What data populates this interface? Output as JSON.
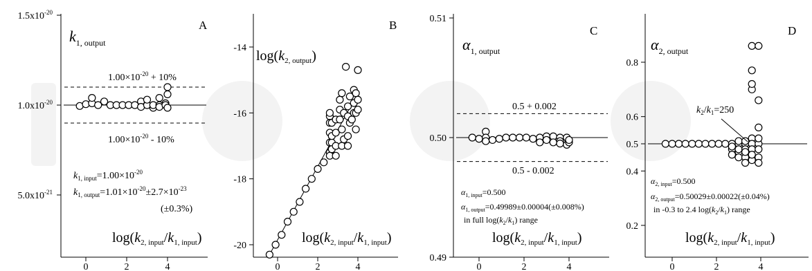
{
  "chart_data": [
    {
      "type": "scatter",
      "panel": "A",
      "ylabel": "k1, output",
      "xlabel": "log(k2, input/k1, input)",
      "xlim": [
        -0.6,
        4.6
      ],
      "ylim": [
        4.2e-21,
        1.5e-20
      ],
      "x_ticks": [
        {
          "label": "0"
        },
        {
          "label": "2"
        },
        {
          "label": "4"
        }
      ],
      "y_ticks": [
        {
          "label": "5.0x10-21"
        },
        {
          "label": "1.0x10-20"
        },
        {
          "label": "1.5x10-20"
        }
      ],
      "x": [
        -0.3,
        0.0,
        0.3,
        0.3,
        0.6,
        0.9,
        1.2,
        1.5,
        1.8,
        2.1,
        2.4,
        2.7,
        2.7,
        3.0,
        3.0,
        3.3,
        3.3,
        3.6,
        3.6,
        3.6,
        3.9,
        3.9,
        4.0,
        4.0,
        4.0
      ],
      "y": [
        9.95e-21,
        1.005e-20,
        1.01e-20,
        1.04e-20,
        1e-20,
        1.02e-20,
        1e-20,
        1e-20,
        1e-20,
        1e-20,
        1e-20,
        1.02e-20,
        9.9e-21,
        1e-20,
        1.03e-20,
        9.85e-21,
        1e-20,
        1e-20,
        1.04e-20,
        9.9e-21,
        1.01e-20,
        1e-20,
        1.06e-20,
        1.1e-20,
        9.85e-21
      ],
      "fit_lines": [
        {
          "y": 1e-20,
          "style": "solid"
        },
        {
          "y": 1.1e-20,
          "style": "dashed",
          "label": "1.00×10-20 + 10%"
        },
        {
          "y": 9e-21,
          "style": "dashed",
          "label": "1.00×10-20 - 10%"
        }
      ],
      "annotations": [
        "k1, input=1.00×10-20",
        "k1, output=1.01×10-20±2.7×10-23",
        "(±0.3%)"
      ]
    },
    {
      "type": "scatter",
      "panel": "B",
      "ylabel": "log(k2, output)",
      "xlabel": "log(k2, input/k1, input)",
      "xlim": [
        -0.6,
        4.6
      ],
      "ylim": [
        -20.6,
        -13.2
      ],
      "x_ticks": [
        {
          "label": "0"
        },
        {
          "label": "2"
        },
        {
          "label": "4"
        }
      ],
      "y_ticks": [
        {
          "label": "-20"
        },
        {
          "label": "-18"
        },
        {
          "label": "-16"
        },
        {
          "label": "-14"
        }
      ],
      "x": [
        -0.4,
        -0.1,
        0.2,
        0.5,
        0.8,
        1.1,
        1.4,
        1.7,
        2.0,
        2.3,
        2.6,
        2.6,
        2.6,
        2.6,
        2.6,
        2.6,
        2.6,
        2.7,
        2.7,
        2.7,
        2.7,
        2.9,
        2.9,
        2.9,
        2.9,
        3.1,
        3.1,
        3.1,
        3.2,
        3.2,
        3.2,
        3.3,
        3.3,
        3.4,
        3.5,
        3.5,
        3.5,
        3.5,
        3.6,
        3.6,
        3.7,
        3.8,
        3.8,
        3.8,
        3.9,
        3.9,
        3.9,
        4.0,
        4.0,
        4.0
      ],
      "y": [
        -20.3,
        -20.0,
        -19.7,
        -19.3,
        -19.0,
        -18.7,
        -18.3,
        -18.0,
        -17.7,
        -17.5,
        -16.1,
        -16.3,
        -16.9,
        -17.2,
        -17.3,
        -16.6,
        -16.0,
        -16.9,
        -17.1,
        -16.7,
        -16.3,
        -17.0,
        -16.6,
        -16.2,
        -17.3,
        -15.6,
        -15.9,
        -16.2,
        -17.0,
        -16.5,
        -15.4,
        -16.0,
        -16.8,
        -14.6,
        -15.8,
        -16.1,
        -16.7,
        -17.0,
        -16.3,
        -15.5,
        -16.2,
        -15.3,
        -15.7,
        -16.0,
        -16.5,
        -16.0,
        -15.4,
        -14.7,
        -15.6,
        -15.9
      ],
      "fit_lines": [
        {
          "x": [
            -0.4,
            4.0
          ],
          "y": [
            -20.3,
            -15.4
          ],
          "style": "solid"
        }
      ]
    },
    {
      "type": "scatter",
      "panel": "C",
      "ylabel": "α1, output",
      "xlabel": "log(k2, input/k1, input)",
      "xlim": [
        -0.6,
        4.6
      ],
      "ylim": [
        0.49,
        0.51
      ],
      "x_ticks": [
        {
          "label": "0"
        },
        {
          "label": "2"
        },
        {
          "label": "4"
        }
      ],
      "y_ticks": [
        {
          "label": "0.49"
        },
        {
          "label": "0.50"
        },
        {
          "label": "0.51"
        }
      ],
      "x": [
        -0.3,
        0.0,
        0.3,
        0.3,
        0.3,
        0.6,
        0.9,
        1.2,
        1.5,
        1.8,
        2.1,
        2.4,
        2.7,
        2.7,
        3.0,
        3.0,
        3.3,
        3.3,
        3.6,
        3.6,
        3.6,
        3.9,
        3.9,
        4.0,
        4.0
      ],
      "y": [
        0.5,
        0.4999,
        0.5005,
        0.5,
        0.4997,
        0.4998,
        0.4999,
        0.5,
        0.5,
        0.5,
        0.5,
        0.4999,
        0.5,
        0.4996,
        0.5001,
        0.4998,
        0.5001,
        0.4996,
        0.5,
        0.4997,
        0.4995,
        0.5,
        0.4994,
        0.4996,
        0.4998
      ],
      "fit_lines": [
        {
          "y": 0.5,
          "style": "solid"
        },
        {
          "y": 0.502,
          "style": "dashed",
          "label": "0.5 + 0.002"
        },
        {
          "y": 0.498,
          "style": "dashed",
          "label": "0.5 - 0.002"
        }
      ],
      "annotations": [
        "α1, input=0.500",
        "α1, output=0.49989±0.00004(±0.008%)",
        "in full log(k2/k1) range"
      ]
    },
    {
      "type": "scatter",
      "panel": "D",
      "ylabel": "α2, output",
      "xlabel": "log(k2, input/k1, input)",
      "xlim": [
        -0.6,
        4.6
      ],
      "ylim": [
        0.12,
        0.92
      ],
      "x_ticks": [
        {
          "label": "0"
        },
        {
          "label": "2"
        },
        {
          "label": "4"
        }
      ],
      "y_ticks": [
        {
          "label": "0.2"
        },
        {
          "label": "0.4"
        },
        {
          "label": "0.5"
        },
        {
          "label": "0.6"
        },
        {
          "label": "0.8"
        }
      ],
      "x": [
        -0.3,
        0.0,
        0.3,
        0.6,
        0.9,
        1.2,
        1.5,
        1.8,
        2.1,
        2.4,
        2.7,
        2.7,
        2.7,
        2.7,
        3.0,
        3.0,
        3.0,
        3.0,
        3.0,
        3.3,
        3.3,
        3.3,
        3.3,
        3.3,
        3.3,
        3.6,
        3.6,
        3.6,
        3.6,
        3.6,
        3.6,
        3.6,
        3.6,
        3.6,
        3.9,
        3.9,
        3.9,
        3.9,
        3.9,
        3.9,
        3.9,
        3.9
      ],
      "y": [
        0.5,
        0.5,
        0.5,
        0.5,
        0.5,
        0.5,
        0.5,
        0.5,
        0.5,
        0.5,
        0.5,
        0.48,
        0.46,
        0.49,
        0.5,
        0.47,
        0.45,
        0.48,
        0.51,
        0.5,
        0.48,
        0.45,
        0.43,
        0.51,
        0.47,
        0.52,
        0.5,
        0.48,
        0.44,
        0.46,
        0.7,
        0.72,
        0.77,
        0.86,
        0.56,
        0.5,
        0.48,
        0.45,
        0.43,
        0.52,
        0.66,
        0.86
      ],
      "fit_lines": [
        {
          "y": 0.5,
          "style": "solid"
        }
      ],
      "annotations": [
        "k2/k1=250",
        "α2, input=0.500",
        "α2, output=0.50029±0.00022(±0.04%)",
        "in -0.3 to 2.4 log(k2/k1) range"
      ]
    }
  ]
}
